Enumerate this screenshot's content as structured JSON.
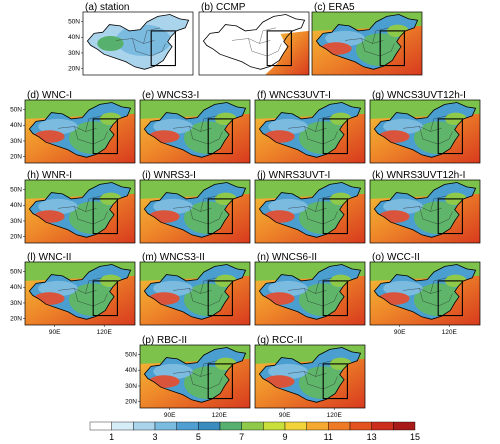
{
  "chart_data": {
    "type": "heatmap",
    "panels": [
      {
        "label": "(a) station",
        "kind": "station",
        "yticks": [
          "50N",
          "40N",
          "30N",
          "20N"
        ],
        "xticks": []
      },
      {
        "label": "(b) CCMP",
        "kind": "ccmp",
        "yticks": [],
        "xticks": []
      },
      {
        "label": "(c) ERA5",
        "kind": "model",
        "yticks": [],
        "xticks": []
      },
      {
        "label": "(d) WNC-I",
        "kind": "model",
        "yticks": [
          "50N",
          "40N",
          "30N",
          "20N"
        ],
        "xticks": []
      },
      {
        "label": "(e) WNCS3-I",
        "kind": "model",
        "yticks": [],
        "xticks": []
      },
      {
        "label": "(f) WNCS3UVT-I",
        "kind": "model",
        "yticks": [],
        "xticks": []
      },
      {
        "label": "(g) WNCS3UVT12h-I",
        "kind": "model",
        "yticks": [],
        "xticks": []
      },
      {
        "label": "(h) WNR-I",
        "kind": "model",
        "yticks": [
          "50N",
          "40N",
          "30N",
          "20N"
        ],
        "xticks": []
      },
      {
        "label": "(i) WNRS3-I",
        "kind": "model",
        "yticks": [],
        "xticks": []
      },
      {
        "label": "(j) WNRS3UVT-I",
        "kind": "model",
        "yticks": [],
        "xticks": []
      },
      {
        "label": "(k) WNRS3UVT12h-I",
        "kind": "model",
        "yticks": [],
        "xticks": []
      },
      {
        "label": "(l) WNC-II",
        "kind": "model",
        "yticks": [
          "50N",
          "40N",
          "30N",
          "20N"
        ],
        "xticks": [
          "90E",
          "120E"
        ]
      },
      {
        "label": "(m) WNCS3-II",
        "kind": "model",
        "yticks": [],
        "xticks": []
      },
      {
        "label": "(n) WNCS6-II",
        "kind": "model",
        "yticks": [],
        "xticks": []
      },
      {
        "label": "(o) WCC-II",
        "kind": "model",
        "yticks": [],
        "xticks": [
          "90E",
          "120E"
        ]
      },
      {
        "label": "(p) RBC-II",
        "kind": "model",
        "yticks": [
          "50N",
          "40N",
          "30N",
          "20N"
        ],
        "xticks": [
          "90E",
          "120E"
        ]
      },
      {
        "label": "(q) RCC-II",
        "kind": "model",
        "yticks": [],
        "xticks": [
          "90E",
          "120E"
        ]
      }
    ],
    "colorbar": {
      "ticks": [
        "1",
        "3",
        "5",
        "7",
        "9",
        "11",
        "13",
        "15"
      ],
      "colors": [
        "#ffffff",
        "#d6ecf7",
        "#a9d4ec",
        "#7cbbe0",
        "#4f9fd2",
        "#3a8cbf",
        "#57b06e",
        "#8fc94a",
        "#c9df3a",
        "#f2d43a",
        "#f5a930",
        "#ef7a26",
        "#e35320",
        "#cc2d1c",
        "#a81a18"
      ]
    }
  }
}
